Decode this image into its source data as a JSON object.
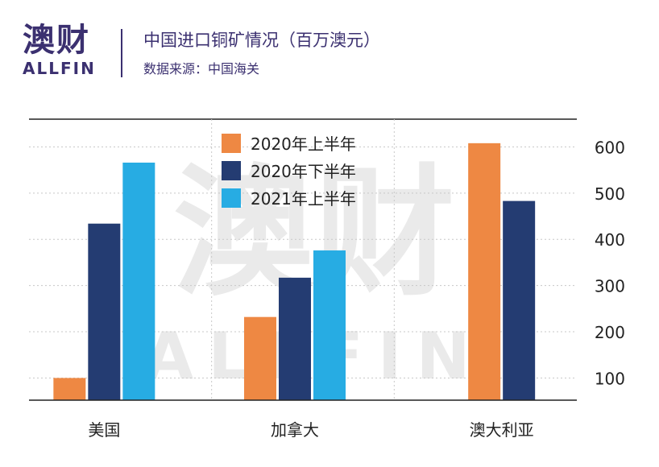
{
  "header": {
    "logo_cn": "澳财",
    "logo_en": "ALLFIN",
    "title": "中国进口铜矿情况（百万澳元）",
    "source": "数据来源：中国海关"
  },
  "watermark": {
    "cn": "澳财",
    "en": "ALLFIN"
  },
  "colors": {
    "brand": "#3b3070",
    "orange": "#ee8843",
    "navy": "#243c72",
    "sky": "#27ace3"
  },
  "chart_data": {
    "type": "bar",
    "categories": [
      "美国",
      "加拿大",
      "澳大利亚"
    ],
    "series": [
      {
        "name": "2020年上半年",
        "color": "#ee8843",
        "values": [
          100,
          232,
          608
        ]
      },
      {
        "name": "2020年下半年",
        "color": "#243c72",
        "values": [
          434,
          317,
          483
        ]
      },
      {
        "name": "2021年上半年",
        "color": "#27ace3",
        "values": [
          566,
          376,
          null
        ]
      }
    ],
    "yticks": [
      100,
      200,
      300,
      400,
      500,
      600
    ],
    "ylim": [
      52,
      660
    ],
    "grid": true,
    "yaxis_side": "right",
    "legend": "top-center"
  }
}
